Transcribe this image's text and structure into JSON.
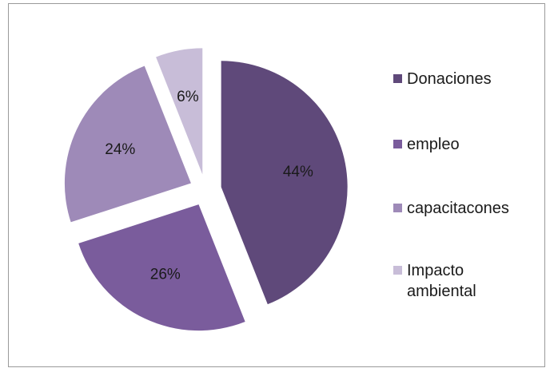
{
  "chart_data": {
    "type": "pie",
    "title": "",
    "categories": [
      "Donaciones",
      "empleo",
      "capacitacones",
      "Impacto ambiental"
    ],
    "values": [
      44,
      26,
      24,
      6
    ],
    "labels": [
      "44%",
      "26%",
      "24%",
      "6%"
    ],
    "colors": [
      "#5f497a",
      "#7a5c9c",
      "#9e8ab8",
      "#c8bdd8"
    ],
    "exploded": true,
    "legend_position": "right"
  }
}
